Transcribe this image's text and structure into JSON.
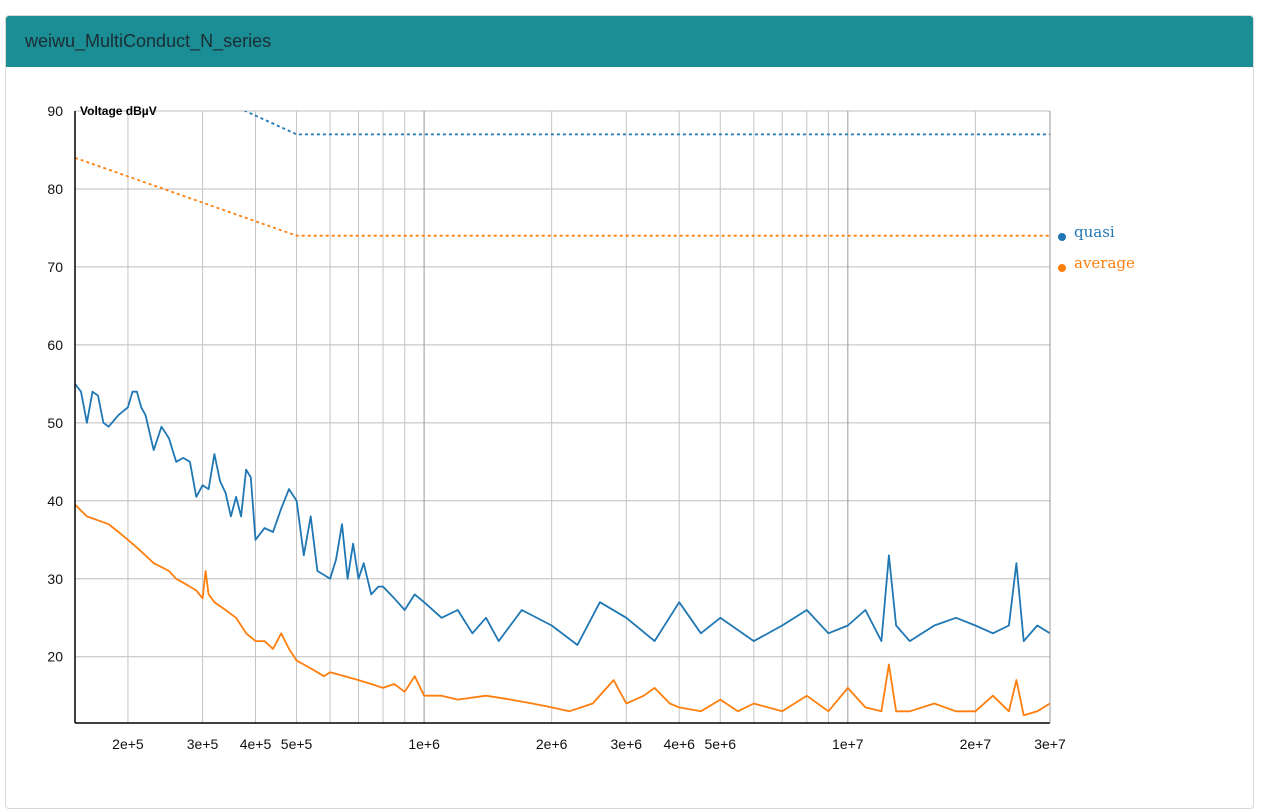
{
  "panel": {
    "title": "weiwu_MultiConduct_N_series"
  },
  "colors": {
    "quasi": "#1f77b4",
    "average": "#ff7f0e",
    "header": "#1b8d95"
  },
  "chart_data": {
    "type": "line",
    "title": "",
    "xlabel": "",
    "ylabel": "Voltage dBµV",
    "x_scale": "log",
    "xlim": [
      150000,
      30000000
    ],
    "ylim": [
      11.5,
      90
    ],
    "y_ticks": [
      20,
      30,
      40,
      50,
      60,
      70,
      80,
      90
    ],
    "x_tick_labels": [
      {
        "value": 200000,
        "label": "2e+5"
      },
      {
        "value": 300000,
        "label": "3e+5"
      },
      {
        "value": 400000,
        "label": "4e+5"
      },
      {
        "value": 500000,
        "label": "5e+5"
      },
      {
        "value": 1000000,
        "label": "1e+6"
      },
      {
        "value": 2000000,
        "label": "2e+6"
      },
      {
        "value": 3000000,
        "label": "3e+6"
      },
      {
        "value": 4000000,
        "label": "4e+6"
      },
      {
        "value": 5000000,
        "label": "5e+6"
      },
      {
        "value": 10000000,
        "label": "1e+7"
      },
      {
        "value": 20000000,
        "label": "2e+7"
      },
      {
        "value": 30000000,
        "label": "3e+7"
      }
    ],
    "grid": true,
    "legend_position": "right",
    "series": [
      {
        "name": "quasi",
        "x": [
          150000,
          155000,
          160000,
          165000,
          170000,
          175000,
          180000,
          190000,
          200000,
          205000,
          210000,
          215000,
          220000,
          230000,
          240000,
          250000,
          260000,
          270000,
          280000,
          290000,
          300000,
          310000,
          320000,
          330000,
          340000,
          350000,
          360000,
          370000,
          380000,
          390000,
          400000,
          420000,
          440000,
          460000,
          480000,
          500000,
          520000,
          540000,
          560000,
          580000,
          600000,
          620000,
          640000,
          660000,
          680000,
          700000,
          720000,
          750000,
          780000,
          800000,
          850000,
          900000,
          950000,
          1000000,
          1100000,
          1200000,
          1300000,
          1400000,
          1500000,
          1700000,
          2000000,
          2300000,
          2600000,
          3000000,
          3500000,
          4000000,
          4500000,
          5000000,
          6000000,
          7000000,
          8000000,
          9000000,
          10000000,
          11000000,
          12000000,
          12500000,
          13000000,
          14000000,
          16000000,
          18000000,
          20000000,
          22000000,
          24000000,
          25000000,
          26000000,
          28000000,
          30000000
        ],
        "y": [
          55,
          54,
          50,
          54,
          53.5,
          50,
          49.5,
          51,
          52,
          54,
          54,
          52,
          51,
          46.5,
          49.5,
          48,
          45,
          45.5,
          45,
          40.5,
          42,
          41.5,
          46,
          42.5,
          41,
          38,
          40.5,
          38,
          44,
          43,
          35,
          36.5,
          36,
          39,
          41.5,
          40,
          33,
          38,
          31,
          30.5,
          30,
          32.5,
          37,
          30,
          34.5,
          30,
          32,
          28,
          29,
          29,
          27.5,
          26,
          28,
          27,
          25,
          26,
          23,
          25,
          22,
          26,
          24,
          21.5,
          27,
          25,
          22,
          27,
          23,
          25,
          22,
          24,
          26,
          23,
          24,
          26,
          22,
          33,
          24,
          22,
          24,
          25,
          24,
          23,
          24,
          32,
          22,
          24,
          23
        ]
      },
      {
        "name": "average",
        "x": [
          150000,
          160000,
          170000,
          180000,
          190000,
          200000,
          210000,
          220000,
          230000,
          240000,
          250000,
          260000,
          270000,
          280000,
          290000,
          300000,
          305000,
          310000,
          320000,
          340000,
          360000,
          380000,
          400000,
          420000,
          440000,
          460000,
          480000,
          500000,
          520000,
          540000,
          560000,
          580000,
          600000,
          650000,
          700000,
          750000,
          800000,
          850000,
          900000,
          950000,
          1000000,
          1100000,
          1200000,
          1400000,
          1600000,
          1800000,
          2000000,
          2200000,
          2500000,
          2800000,
          3000000,
          3300000,
          3500000,
          3800000,
          4000000,
          4500000,
          5000000,
          5500000,
          6000000,
          7000000,
          8000000,
          9000000,
          10000000,
          11000000,
          12000000,
          12500000,
          13000000,
          14000000,
          16000000,
          18000000,
          20000000,
          22000000,
          24000000,
          25000000,
          26000000,
          28000000,
          30000000
        ],
        "y": [
          39.5,
          38,
          37.5,
          37,
          36,
          35,
          34,
          33,
          32,
          31.5,
          31,
          30,
          29.5,
          29,
          28.5,
          27.5,
          31,
          28,
          27,
          26,
          25,
          23,
          22,
          22,
          21,
          23,
          21,
          19.5,
          19,
          18.5,
          18,
          17.5,
          18,
          17.5,
          17,
          16.5,
          16,
          16.5,
          15.5,
          17.5,
          15,
          15,
          14.5,
          15,
          14.5,
          14,
          13.5,
          13,
          14,
          17,
          14,
          15,
          16,
          14,
          13.5,
          13,
          14.5,
          13,
          14,
          13,
          15,
          13,
          16,
          13.5,
          13,
          19,
          13,
          13,
          14,
          13,
          13,
          15,
          13,
          17,
          12.5,
          13,
          14
        ]
      },
      {
        "name": "",
        "x": [
          150000,
          500000,
          30000000
        ],
        "y": [
          100,
          87,
          87
        ]
      },
      {
        "name": "",
        "x": [
          150000,
          500000,
          30000000
        ],
        "y": [
          84,
          74,
          74
        ]
      }
    ]
  }
}
